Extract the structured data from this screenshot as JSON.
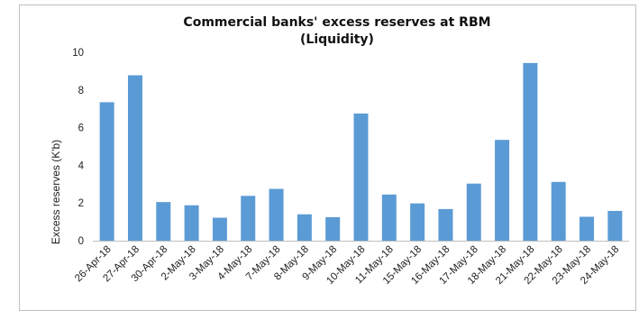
{
  "chart_data": {
    "type": "bar",
    "title_lines": [
      "Commercial banks' excess reserves at RBM",
      "(Liquidity)"
    ],
    "xlabel": "",
    "ylabel": "Excess reserves (K'b)",
    "ylim": [
      0,
      10
    ],
    "yticks": [
      0,
      2,
      4,
      6,
      8,
      10
    ],
    "grid": false,
    "legend": "none",
    "bar_color": "#5b9bd5",
    "categories": [
      "26-Apr-18",
      "27-Apr-18",
      "30-Apr-18",
      "2-May-18",
      "3-May-18",
      "4-May-18",
      "7-May-18",
      "8-May-18",
      "9-May-18",
      "10-May-18",
      "11-May-18",
      "15-May-18",
      "16-May-18",
      "17-May-18",
      "18-May-18",
      "21-May-18",
      "22-May-18",
      "23-May-18",
      "24-May-18"
    ],
    "values": [
      7.35,
      8.78,
      2.05,
      1.88,
      1.22,
      2.38,
      2.75,
      1.4,
      1.25,
      6.75,
      2.45,
      1.98,
      1.68,
      3.03,
      5.35,
      9.43,
      3.12,
      1.27,
      1.58
    ]
  }
}
